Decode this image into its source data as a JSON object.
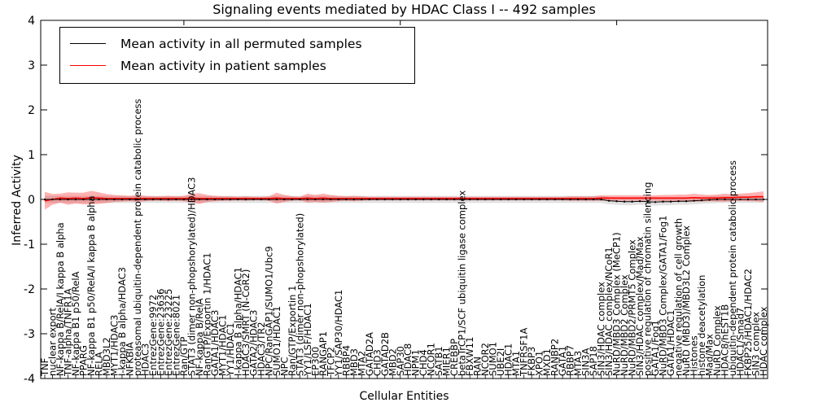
{
  "figure": {
    "title": "Signaling events mediated by HDAC Class I -- 492 samples",
    "xlabel": "Cellular Entities",
    "ylabel": "Inferred Activity"
  },
  "legend": {
    "items": [
      {
        "label": "Mean activity in all permuted samples",
        "color": "#000000"
      },
      {
        "label": "Mean activity in patient samples",
        "color": "#ff0000"
      }
    ]
  },
  "chart_data": {
    "type": "line",
    "title": "Signaling events mediated by HDAC Class I -- 492 samples",
    "xlabel": "Cellular Entities",
    "ylabel": "Inferred Activity",
    "ylim": [
      -4,
      4
    ],
    "yticks": [
      4,
      3,
      2,
      1,
      0,
      -1,
      -2,
      -3,
      -4
    ],
    "grid": false,
    "legend_position": "upper left",
    "categories": [
      "TNF",
      "nuclear export",
      "NF-kappa B/RelA/I kappa B alpha",
      "TNF-alpha/TNFR1A",
      "NF-kappa B1 p50/RelA",
      "PPARG",
      "NF-kappa B1 p50/RelA/I kappa B alpha",
      "RELA",
      "MBD3L2",
      "MYT1/HDAC3",
      "I-kappa B alpha/HDAC3",
      "NFKBIA",
      "proteasomal ubiquitin-dependent protein catabolic process",
      "HDAC3",
      "EntrezGene:9972",
      "EntrezGene:23636",
      "EntrezGene:23225",
      "EntrezGene:8021",
      "Ran/GTP",
      "STAT3 (dimer non-phopshorylated)/HDAC3",
      "NF-kappa B/RelA",
      "RanGTP/Exportin 1/HDAC1",
      "GATA1/HDAC3",
      "MYT1/HDAC1",
      "YY1/HDAC1",
      "I-kappa B alpha/HDAC1",
      "HDAC3/SMRT (N-CoR2)",
      "GATA2/HDAC3",
      "HDAC3/TR2",
      "NPC/RanGAP1/SUMO1/Ubc9",
      "SUMO1/HDAC1",
      "NPC",
      "Ran/GTP/Exportin 1",
      "STAT3 (dimer non-phopshorylated)",
      "YY1/LSF/HDAC1",
      "EP300",
      "RANGAP1",
      "TFCP2",
      "YY1/SAP30/HDAC1",
      "RBBP4",
      "MBD3",
      "MTA2",
      "GATAD2A",
      "CHD3",
      "GATAD2B",
      "MBD2",
      "SAP30",
      "HDAC8",
      "NPM1",
      "CHD4",
      "NCOR1",
      "SATB1",
      "MIER1",
      "CREBBP",
      "betaTrCP1/SCF ubiquitin ligase complex",
      "FBXW11",
      "RAN",
      "NCOR2",
      "SUMO1",
      "UBE2I",
      "HDAC1",
      "MTA1",
      "TNFRSF1A",
      "FKBP3",
      "XPO1",
      "MXD1",
      "RANBP2",
      "GATA1",
      "RBBP7",
      "MTA3",
      "SIN3A",
      "SAP18",
      "SIN3/HDAC complex",
      "SIN3/HDAC complex/NCoR1",
      "NuRD/MBD3 Complex (MeCP1)",
      "NuRD/MBD2 Complex",
      "NuRD/MBD2/PRMT5 Complex",
      "SIN3/HDAC complex/Mad/Max",
      "positive regulation of chromatin silencing",
      "GATA1/Fog1",
      "NuRD/MBD3 Complex/GATA1/Fog1",
      "GATA1/HDAC1",
      "negative regulation of cell growth",
      "NuRD (MBD3)/MBD3L2 Complex",
      "Histones",
      "histone deacetylation",
      "Mad/Max",
      "NuRD Complex",
      "HDAC8/hEST1B",
      "ubiquitin-dependent protein catabolic process",
      "HDAC1/Smad7",
      "FKBP25/HDAC1/HDAC2",
      "SIN3 complex",
      "HDAC complex"
    ],
    "series": [
      {
        "name": "Mean activity in all permuted samples",
        "color": "#000000",
        "band_color": "#c8c8c8",
        "band_opacity": 0.55,
        "band_halfwidth": 0.08,
        "values": [
          0,
          0,
          0,
          0,
          0,
          0,
          0,
          0,
          0,
          0,
          0,
          0,
          0,
          0,
          0,
          0,
          0,
          0,
          0,
          0,
          0,
          0,
          0,
          0,
          0,
          0,
          0,
          0,
          0,
          0,
          0,
          0,
          0,
          0,
          0,
          0,
          0,
          0,
          0,
          0,
          0,
          0,
          0,
          0,
          0,
          0,
          0,
          0,
          0,
          0,
          0,
          0,
          0,
          0,
          0,
          0,
          0,
          0,
          0,
          0,
          0,
          0,
          0,
          0,
          0,
          0,
          0,
          0,
          0,
          0,
          0,
          0,
          0,
          -0.03,
          -0.04,
          -0.05,
          -0.05,
          -0.04,
          -0.05,
          -0.06,
          -0.05,
          -0.05,
          -0.04,
          -0.04,
          -0.03,
          -0.02,
          -0.01,
          0,
          0,
          0,
          0,
          0,
          0,
          0
        ]
      },
      {
        "name": "Mean activity in patient samples",
        "color": "#ff0000",
        "band_color": "#ff0000",
        "band_opacity": 0.3,
        "band_halfwidths": [
          0.2,
          0.12,
          0.1,
          0.14,
          0.12,
          0.13,
          0.15,
          0.13,
          0.1,
          0.08,
          0.07,
          0.06,
          0.08,
          0.06,
          0.05,
          0.05,
          0.06,
          0.05,
          0.06,
          0.1,
          0.12,
          0.08,
          0.06,
          0.05,
          0.05,
          0.04,
          0.05,
          0.04,
          0.04,
          0.05,
          0.12,
          0.08,
          0.05,
          0.04,
          0.1,
          0.08,
          0.1,
          0.08,
          0.06,
          0.05,
          0.06,
          0.05,
          0.04,
          0.04,
          0.04,
          0.04,
          0.04,
          0.04,
          0.04,
          0.04,
          0.04,
          0.04,
          0.04,
          0.04,
          0.04,
          0.04,
          0.04,
          0.04,
          0.04,
          0.04,
          0.04,
          0.04,
          0.04,
          0.04,
          0.04,
          0.04,
          0.04,
          0.04,
          0.05,
          0.05,
          0.05,
          0.05,
          0.06,
          0.06,
          0.06,
          0.06,
          0.06,
          0.06,
          0.06,
          0.06,
          0.07,
          0.07,
          0.08,
          0.08,
          0.09,
          0.08,
          0.07,
          0.08,
          0.09,
          0.08,
          0.08,
          0.09,
          0.1,
          0.12
        ],
        "values": [
          -0.03,
          0.0,
          0.03,
          0.02,
          0.03,
          0.02,
          0.04,
          0.03,
          0.02,
          0.02,
          0.02,
          0.02,
          0.02,
          0.02,
          0.02,
          0.02,
          0.02,
          0.02,
          0.02,
          0.03,
          0.02,
          0.02,
          0.02,
          0.02,
          0.02,
          0.02,
          0.02,
          0.02,
          0.02,
          0.02,
          0.03,
          0.02,
          0.02,
          0.02,
          0.03,
          0.02,
          0.03,
          0.02,
          0.02,
          0.02,
          0.02,
          0.02,
          0.02,
          0.02,
          0.02,
          0.02,
          0.02,
          0.02,
          0.02,
          0.02,
          0.02,
          0.02,
          0.02,
          0.02,
          0.02,
          0.02,
          0.02,
          0.02,
          0.02,
          0.02,
          0.02,
          0.02,
          0.02,
          0.02,
          0.02,
          0.02,
          0.02,
          0.02,
          0.02,
          0.02,
          0.02,
          0.02,
          0.03,
          0.03,
          0.03,
          0.03,
          0.03,
          0.03,
          0.03,
          0.03,
          0.03,
          0.03,
          0.03,
          0.03,
          0.04,
          0.03,
          0.03,
          0.03,
          0.04,
          0.04,
          0.05,
          0.05,
          0.06,
          0.06
        ]
      }
    ]
  }
}
